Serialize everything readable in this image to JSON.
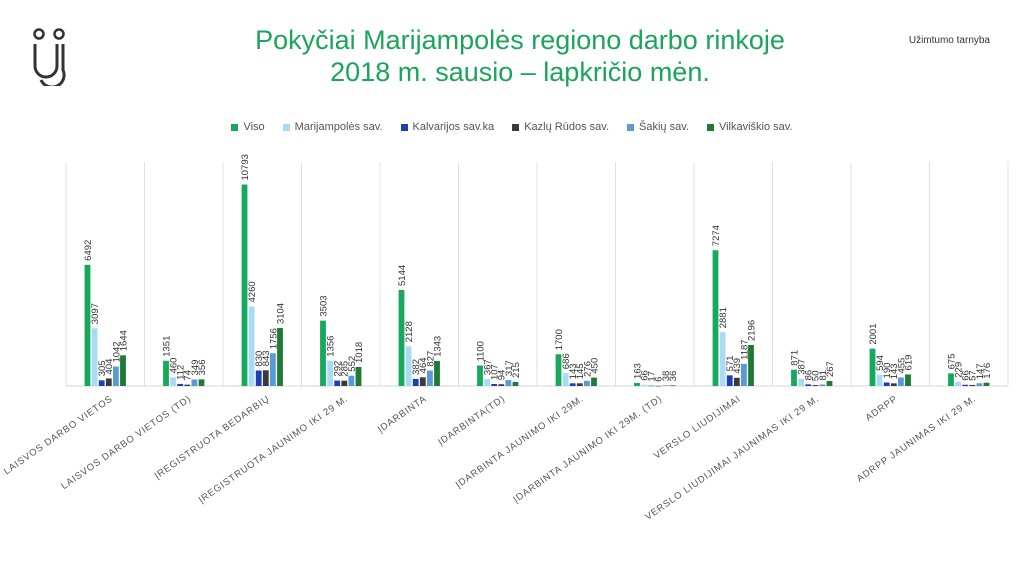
{
  "header": {
    "title_line1": "Pokyčiai Marijampolės regiono darbo rinkoje",
    "title_line2": "2018 m. sausio – lapkričio mėn.",
    "org": "Užimtumo tarnyba",
    "accent_color": "#1aa65a"
  },
  "logo": {
    "icon": "uzimtumo-tarnyba-logo-icon",
    "color": "#333333"
  },
  "chart_data": {
    "type": "bar",
    "title": "",
    "xlabel": "",
    "ylabel": "",
    "ylim": [
      0,
      12000
    ],
    "grid": false,
    "legend_position": "top",
    "categories": [
      "LAISVOS DARBO VIETOS",
      "LAISVOS DARBO VIETOS (TD)",
      "ĮREGISTRUOTA BEDARBIŲ",
      "ĮREGISTRUOTA JAUNIMO IKI 29 M.",
      "ĮDARBINTA",
      "ĮDARBINTA(TD)",
      "ĮDARBINTA JAUNIMO IKI 29M.",
      "ĮDARBINTA JAUNIMO IKI 29M. (TD)",
      "VERSLO LIUDIJIMAI",
      "VERSLO LIUDIJIMAI JAUNIMAS IKI 29 M.",
      "ADRPP",
      "ADRPP JAUNIMAS IKI 29 M."
    ],
    "series": [
      {
        "name": "Viso",
        "color": "#16a85c",
        "values": [
          6492,
          1351,
          10793,
          3503,
          5144,
          1100,
          1700,
          163,
          7274,
          871,
          2001,
          675
        ]
      },
      {
        "name": "Marijampolės sav.",
        "color": "#a9dcf4",
        "values": [
          3097,
          460,
          4260,
          1356,
          2128,
          367,
          686,
          66,
          2881,
          387,
          594,
          229
        ]
      },
      {
        "name": "Kalvarijos sav.ka",
        "color": "#1f3fb3",
        "values": [
          305,
          112,
          830,
          292,
          382,
          107,
          143,
          17,
          571,
          86,
          190,
          66
        ]
      },
      {
        "name": "Kazlų Rūdos sav.",
        "color": "#3a3a3a",
        "values": [
          404,
          74,
          843,
          285,
          464,
          94,
          145,
          6,
          439,
          50,
          143,
          57
        ]
      },
      {
        "name": "Šakių sav.",
        "color": "#5b9bd5",
        "values": [
          1042,
          349,
          1756,
          552,
          827,
          317,
          276,
          38,
          1187,
          81,
          455,
          147
        ]
      },
      {
        "name": "Vilkaviškio sav.",
        "color": "#1e7a34",
        "values": [
          1644,
          356,
          3104,
          1018,
          1343,
          215,
          450,
          36,
          2196,
          267,
          619,
          176
        ]
      }
    ]
  }
}
